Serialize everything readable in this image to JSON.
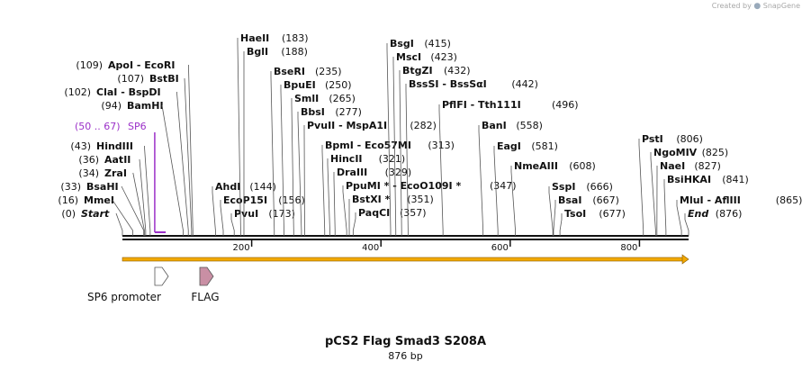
{
  "credit": {
    "text": "Created by",
    "brand": "SnapGene",
    "brand_icon": "snapgene-logo-icon"
  },
  "plasmid": {
    "name": "pCS2 Flag Smad3 S208A",
    "length_label": "876 bp",
    "length": 876
  },
  "colors": {
    "backbone": "#111111",
    "feature_arrow": "#f2a900",
    "primer": "#9b30c8",
    "sp6_fill": "#ffffff",
    "flag_fill": "#c98fa4",
    "leader": "#555555"
  },
  "ruler": {
    "ticks": [
      {
        "pos": 200,
        "label": "200"
      },
      {
        "pos": 400,
        "label": "400"
      },
      {
        "pos": 600,
        "label": "600"
      },
      {
        "pos": 800,
        "label": "800"
      }
    ]
  },
  "sites": [
    {
      "name": "Start",
      "num": "(0)",
      "pos": 0,
      "italic": true
    },
    {
      "name": "MmeI",
      "num": "(16)",
      "pos": 16
    },
    {
      "name": "BsaHI",
      "num": "(33)",
      "pos": 33
    },
    {
      "name": "ZraI",
      "num": "(34)",
      "pos": 34
    },
    {
      "name": "AatII",
      "num": "(36)",
      "pos": 36
    },
    {
      "name": "HindIII",
      "num": "(43)",
      "pos": 43
    },
    {
      "name": "BamHI",
      "num": "(94)",
      "pos": 94
    },
    {
      "name": "ClaI - BspDI",
      "num": "(102)",
      "pos": 102
    },
    {
      "name": "BstBI",
      "num": "(107)",
      "pos": 107
    },
    {
      "name": "ApoI - EcoRI",
      "num": "(109)",
      "pos": 109
    },
    {
      "name": "AhdI",
      "num": "(144)",
      "pos": 144
    },
    {
      "name": "EcoP15I",
      "num": "(156)",
      "pos": 156
    },
    {
      "name": "PvuI",
      "num": "(173)",
      "pos": 173
    },
    {
      "name": "HaeII",
      "num": "(183)",
      "pos": 183
    },
    {
      "name": "BglI",
      "num": "(188)",
      "pos": 188
    },
    {
      "name": "BseRI",
      "num": "(235)",
      "pos": 235
    },
    {
      "name": "BpuEI",
      "num": "(250)",
      "pos": 250
    },
    {
      "name": "SmlI",
      "num": "(265)",
      "pos": 265
    },
    {
      "name": "BbsI",
      "num": "(277)",
      "pos": 277
    },
    {
      "name": "PvuII - MspA1I",
      "num": "(282)",
      "pos": 282
    },
    {
      "name": "BpmI - Eco57MI",
      "num": "(313)",
      "pos": 313
    },
    {
      "name": "HincII",
      "num": "(321)",
      "pos": 321
    },
    {
      "name": "DraIII",
      "num": "(329)",
      "pos": 329
    },
    {
      "name": "PpuMI * - EcoO109I *",
      "num": "(347)",
      "pos": 347
    },
    {
      "name": "BstXI *",
      "num": "(351)",
      "pos": 351
    },
    {
      "name": "PaqCI",
      "num": "(357)",
      "pos": 357
    },
    {
      "name": "BsgI",
      "num": "(415)",
      "pos": 415
    },
    {
      "name": "MscI",
      "num": "(423)",
      "pos": 423
    },
    {
      "name": "BtgZI",
      "num": "(432)",
      "pos": 432
    },
    {
      "name": "BssSI - BssSαI",
      "num": "(442)",
      "pos": 442
    },
    {
      "name": "PflFI - Tth111I",
      "num": "(496)",
      "pos": 496
    },
    {
      "name": "BanI",
      "num": "(558)",
      "pos": 558
    },
    {
      "name": "EagI",
      "num": "(581)",
      "pos": 581
    },
    {
      "name": "NmeAIII",
      "num": "(608)",
      "pos": 608
    },
    {
      "name": "SspI",
      "num": "(666)",
      "pos": 666
    },
    {
      "name": "BsaI",
      "num": "(667)",
      "pos": 667
    },
    {
      "name": "TsoI",
      "num": "(677)",
      "pos": 677
    },
    {
      "name": "PstI",
      "num": "(806)",
      "pos": 806
    },
    {
      "name": "NgoMIV",
      "num": "(825)",
      "pos": 825
    },
    {
      "name": "NaeI",
      "num": "(827)",
      "pos": 827
    },
    {
      "name": "BsiHKAI",
      "num": "(841)",
      "pos": 841
    },
    {
      "name": "MluI - AflIII",
      "num": "(865)",
      "pos": 865
    },
    {
      "name": "End",
      "num": "(876)",
      "pos": 876,
      "italic": true
    }
  ],
  "primer": {
    "name": "SP6",
    "range": "(50 .. 67)",
    "start": 50,
    "end": 67
  },
  "features": [
    {
      "name": "SP6 promoter",
      "start": 50,
      "end": 67,
      "type": "promoter"
    },
    {
      "name": "FLAG",
      "start": 125,
      "end": 148,
      "type": "tag"
    }
  ]
}
